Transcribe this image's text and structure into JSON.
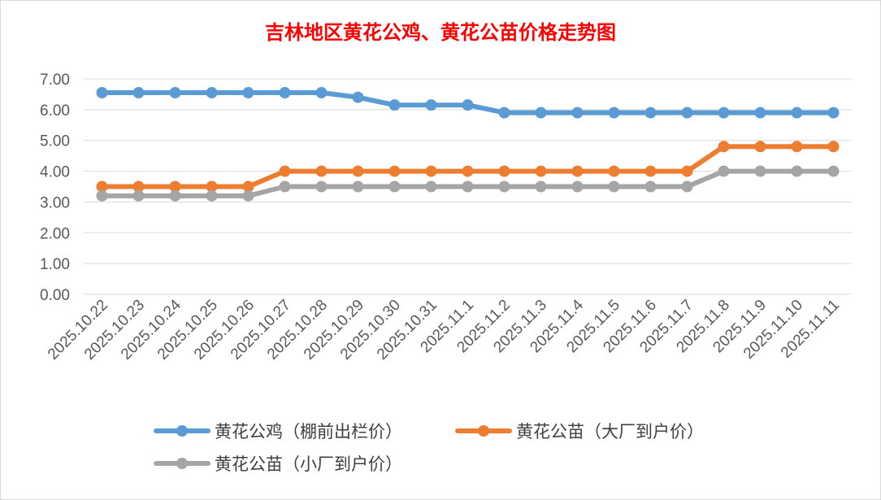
{
  "chart_data": {
    "type": "line",
    "title": "吉林地区黄花公鸡、黄花公苗价格走势图",
    "title_color": "#ff0000",
    "categories": [
      "2025.10.22",
      "2025.10.23",
      "2025.10.24",
      "2025.10.25",
      "2025.10.26",
      "2025.10.27",
      "2025.10.28",
      "2025.10.29",
      "2025.10.30",
      "2025.10.31",
      "2025.11.1",
      "2025.11.2",
      "2025.11.3",
      "2025.11.4",
      "2025.11.5",
      "2025.11.6",
      "2025.11.7",
      "2025.11.8",
      "2025.11.9",
      "2025.11.10",
      "2025.11.11"
    ],
    "ylim": [
      0,
      7
    ],
    "yticks": [
      "0.00",
      "1.00",
      "2.00",
      "3.00",
      "4.00",
      "5.00",
      "6.00",
      "7.00"
    ],
    "grid": true,
    "legend_position": "bottom",
    "series": [
      {
        "name": "黄花公鸡（棚前出栏价）",
        "color": "#5b9bd5",
        "values": [
          6.55,
          6.55,
          6.55,
          6.55,
          6.55,
          6.55,
          6.55,
          6.4,
          6.15,
          6.15,
          6.15,
          5.9,
          5.9,
          5.9,
          5.9,
          5.9,
          5.9,
          5.9,
          5.9,
          5.9,
          5.9
        ]
      },
      {
        "name": "黄花公苗（大厂到户价）",
        "color": "#ed7d31",
        "values": [
          3.5,
          3.5,
          3.5,
          3.5,
          3.5,
          4.0,
          4.0,
          4.0,
          4.0,
          4.0,
          4.0,
          4.0,
          4.0,
          4.0,
          4.0,
          4.0,
          4.0,
          4.8,
          4.8,
          4.8,
          4.8
        ]
      },
      {
        "name": "黄花公苗（小厂到户价）",
        "color": "#a5a5a5",
        "values": [
          3.2,
          3.2,
          3.2,
          3.2,
          3.2,
          3.5,
          3.5,
          3.5,
          3.5,
          3.5,
          3.5,
          3.5,
          3.5,
          3.5,
          3.5,
          3.5,
          3.5,
          4.0,
          4.0,
          4.0,
          4.0
        ]
      }
    ]
  }
}
